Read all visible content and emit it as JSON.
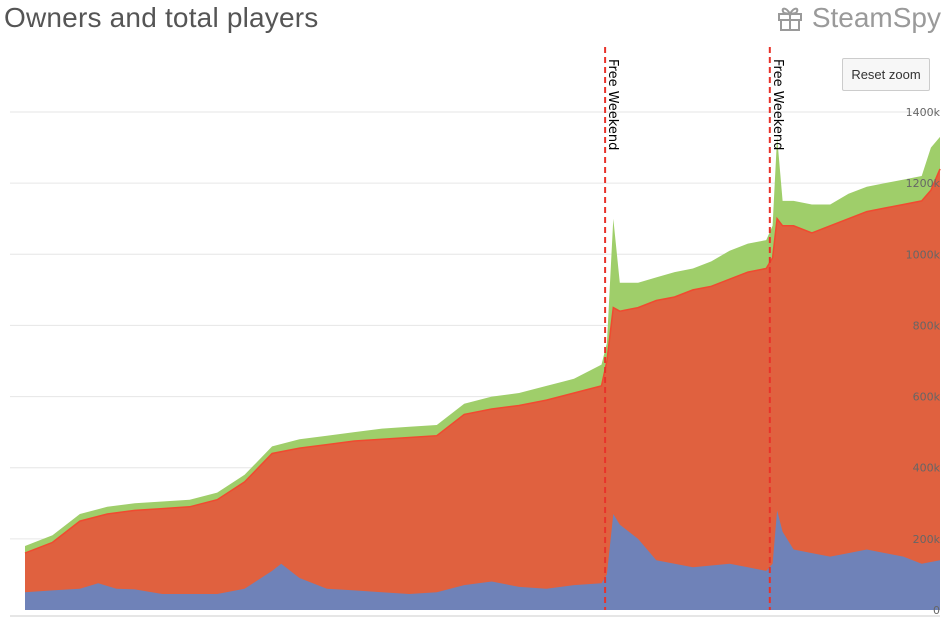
{
  "header": {
    "title": "Owners and total players",
    "brand": "SteamSpy",
    "brand_icon": "gift-icon"
  },
  "controls": {
    "reset_zoom_label": "Reset zoom"
  },
  "colors": {
    "players": "#9fce6a",
    "owners": "#e0613f",
    "owners_line": "#f04a30",
    "blue": "#6f82b8",
    "marker": "#e8322a",
    "grid": "#e6e6e6"
  },
  "chart_data": {
    "type": "area",
    "title": "Owners and total players",
    "x": {
      "start": 0,
      "end": 100
    },
    "ylim": [
      0,
      1400000
    ],
    "y_ticks": [
      "0",
      "200k",
      "400k",
      "600k",
      "800k",
      "1000k",
      "1200k",
      "1400k"
    ],
    "y_axis_position": "right",
    "grid": true,
    "annotations": [
      {
        "label": "Free Weekend",
        "x": 63.4
      },
      {
        "label": "Free Weekend",
        "x": 81.4
      }
    ],
    "series": [
      {
        "key": "total_players",
        "points": [
          [
            0,
            180000
          ],
          [
            3,
            210000
          ],
          [
            6,
            270000
          ],
          [
            9,
            290000
          ],
          [
            12,
            300000
          ],
          [
            15,
            305000
          ],
          [
            18,
            310000
          ],
          [
            21,
            330000
          ],
          [
            24,
            380000
          ],
          [
            27,
            460000
          ],
          [
            30,
            480000
          ],
          [
            33,
            490000
          ],
          [
            36,
            500000
          ],
          [
            39,
            510000
          ],
          [
            42,
            515000
          ],
          [
            45,
            520000
          ],
          [
            48,
            580000
          ],
          [
            51,
            600000
          ],
          [
            54,
            610000
          ],
          [
            57,
            630000
          ],
          [
            60,
            650000
          ],
          [
            63,
            690000
          ],
          [
            63.6,
            750000
          ],
          [
            64.3,
            1100000
          ],
          [
            65,
            920000
          ],
          [
            67,
            920000
          ],
          [
            69,
            935000
          ],
          [
            71,
            950000
          ],
          [
            73,
            960000
          ],
          [
            75,
            980000
          ],
          [
            77,
            1010000
          ],
          [
            79,
            1030000
          ],
          [
            81,
            1040000
          ],
          [
            81.7,
            1080000
          ],
          [
            82.2,
            1330000
          ],
          [
            82.8,
            1150000
          ],
          [
            84,
            1150000
          ],
          [
            86,
            1140000
          ],
          [
            88,
            1140000
          ],
          [
            90,
            1170000
          ],
          [
            92,
            1190000
          ],
          [
            94,
            1200000
          ],
          [
            96,
            1210000
          ],
          [
            98,
            1220000
          ],
          [
            99,
            1300000
          ],
          [
            100,
            1330000
          ]
        ]
      },
      {
        "key": "owners",
        "points": [
          [
            0,
            160000
          ],
          [
            3,
            190000
          ],
          [
            6,
            250000
          ],
          [
            9,
            270000
          ],
          [
            12,
            280000
          ],
          [
            15,
            285000
          ],
          [
            18,
            290000
          ],
          [
            21,
            310000
          ],
          [
            24,
            360000
          ],
          [
            27,
            440000
          ],
          [
            30,
            455000
          ],
          [
            33,
            465000
          ],
          [
            36,
            475000
          ],
          [
            39,
            480000
          ],
          [
            42,
            485000
          ],
          [
            45,
            490000
          ],
          [
            48,
            550000
          ],
          [
            51,
            565000
          ],
          [
            54,
            575000
          ],
          [
            57,
            590000
          ],
          [
            60,
            610000
          ],
          [
            63,
            630000
          ],
          [
            63.6,
            700000
          ],
          [
            64.3,
            850000
          ],
          [
            65,
            840000
          ],
          [
            67,
            850000
          ],
          [
            69,
            870000
          ],
          [
            71,
            880000
          ],
          [
            73,
            900000
          ],
          [
            75,
            910000
          ],
          [
            77,
            930000
          ],
          [
            79,
            950000
          ],
          [
            81,
            960000
          ],
          [
            81.7,
            990000
          ],
          [
            82.2,
            1100000
          ],
          [
            82.8,
            1080000
          ],
          [
            84,
            1080000
          ],
          [
            86,
            1060000
          ],
          [
            88,
            1080000
          ],
          [
            90,
            1100000
          ],
          [
            92,
            1120000
          ],
          [
            94,
            1130000
          ],
          [
            96,
            1140000
          ],
          [
            98,
            1150000
          ],
          [
            99,
            1180000
          ],
          [
            100,
            1240000
          ]
        ]
      },
      {
        "key": "blue",
        "points": [
          [
            0,
            50000
          ],
          [
            3,
            55000
          ],
          [
            6,
            60000
          ],
          [
            8,
            75000
          ],
          [
            10,
            60000
          ],
          [
            12,
            58000
          ],
          [
            15,
            45000
          ],
          [
            18,
            45000
          ],
          [
            21,
            45000
          ],
          [
            24,
            60000
          ],
          [
            27,
            110000
          ],
          [
            28,
            130000
          ],
          [
            30,
            90000
          ],
          [
            33,
            60000
          ],
          [
            36,
            55000
          ],
          [
            39,
            50000
          ],
          [
            42,
            45000
          ],
          [
            45,
            50000
          ],
          [
            48,
            70000
          ],
          [
            51,
            80000
          ],
          [
            54,
            65000
          ],
          [
            57,
            60000
          ],
          [
            60,
            70000
          ],
          [
            63,
            75000
          ],
          [
            63.6,
            100000
          ],
          [
            64.3,
            270000
          ],
          [
            65,
            240000
          ],
          [
            67,
            200000
          ],
          [
            69,
            140000
          ],
          [
            71,
            130000
          ],
          [
            73,
            120000
          ],
          [
            75,
            125000
          ],
          [
            77,
            130000
          ],
          [
            79,
            120000
          ],
          [
            81,
            110000
          ],
          [
            81.7,
            130000
          ],
          [
            82.2,
            280000
          ],
          [
            82.8,
            220000
          ],
          [
            84,
            170000
          ],
          [
            86,
            160000
          ],
          [
            88,
            150000
          ],
          [
            90,
            160000
          ],
          [
            92,
            170000
          ],
          [
            94,
            160000
          ],
          [
            96,
            150000
          ],
          [
            98,
            130000
          ],
          [
            100,
            140000
          ]
        ]
      }
    ]
  }
}
